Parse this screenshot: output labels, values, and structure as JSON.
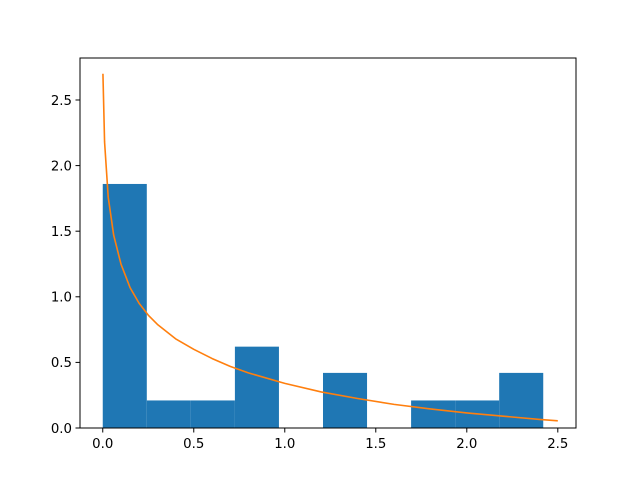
{
  "chart_data": {
    "type": "bar",
    "title": "",
    "xlabel": "",
    "ylabel": "",
    "xlim": [
      -0.125,
      2.6
    ],
    "ylim": [
      0,
      2.82
    ],
    "grid": false,
    "histogram": {
      "bin_edges": [
        0.0,
        0.242,
        0.484,
        0.726,
        0.968,
        1.21,
        1.452,
        1.694,
        1.936,
        2.178,
        2.42
      ],
      "values": [
        1.86,
        0.21,
        0.21,
        0.62,
        0.0,
        0.42,
        0.0,
        0.21,
        0.21,
        0.42
      ],
      "color": "#1f77b4"
    },
    "curve": {
      "color": "#ff7f0e",
      "x": [
        0.001,
        0.01,
        0.03,
        0.06,
        0.1,
        0.15,
        0.2,
        0.25,
        0.3,
        0.4,
        0.5,
        0.6,
        0.7,
        0.8,
        1.0,
        1.2,
        1.4,
        1.6,
        1.8,
        2.0,
        2.2,
        2.4,
        2.5
      ],
      "y": [
        2.7,
        2.18,
        1.76,
        1.47,
        1.25,
        1.07,
        0.95,
        0.86,
        0.79,
        0.68,
        0.6,
        0.53,
        0.47,
        0.42,
        0.34,
        0.275,
        0.225,
        0.18,
        0.145,
        0.115,
        0.09,
        0.065,
        0.055
      ]
    },
    "x_ticks": [
      {
        "value": 0.0,
        "label": "0.0"
      },
      {
        "value": 0.5,
        "label": "0.5"
      },
      {
        "value": 1.0,
        "label": "1.0"
      },
      {
        "value": 1.5,
        "label": "1.5"
      },
      {
        "value": 2.0,
        "label": "2.0"
      },
      {
        "value": 2.5,
        "label": "2.5"
      }
    ],
    "y_ticks": [
      {
        "value": 0.0,
        "label": "0.0"
      },
      {
        "value": 0.5,
        "label": "0.5"
      },
      {
        "value": 1.0,
        "label": "1.0"
      },
      {
        "value": 1.5,
        "label": "1.5"
      },
      {
        "value": 2.0,
        "label": "2.0"
      },
      {
        "value": 2.5,
        "label": "2.5"
      }
    ]
  }
}
